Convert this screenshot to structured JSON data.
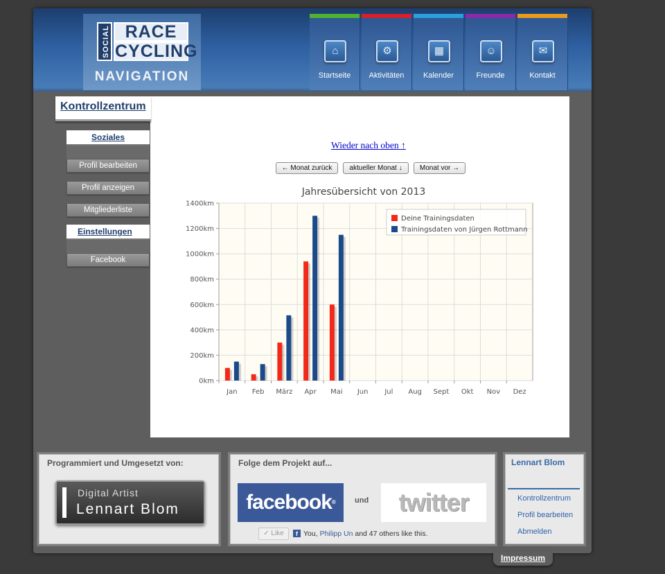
{
  "header": {
    "logo_social": "SOCIAL",
    "logo_race": "RACE",
    "logo_cycling": "CYCLING",
    "navigation_label": "NAVIGATION",
    "tabs": [
      {
        "label": "Startseite",
        "color": "#4fb330",
        "icon": "home-icon"
      },
      {
        "label": "Aktivitäten",
        "color": "#d8202a",
        "icon": "bicycle-icon"
      },
      {
        "label": "Kalender",
        "color": "#2aa0dc",
        "icon": "calendar-icon"
      },
      {
        "label": "Freunde",
        "color": "#8b2aa8",
        "icon": "friends-icon"
      },
      {
        "label": "Kontakt",
        "color": "#e89a1c",
        "icon": "mail-icon"
      }
    ]
  },
  "page_title": "Kontrollzentrum",
  "sidebar": {
    "soziales": "Soziales",
    "items_social": [
      "Profil bearbeiten",
      "Profil anzeigen",
      "Mitgliederliste"
    ],
    "einstellungen": "Einstellungen",
    "items_settings": [
      "Facebook"
    ]
  },
  "content": {
    "top_link": "Wieder nach oben ↑",
    "btn_prev": "← Monat zurück",
    "btn_current": "aktueller Monat ↓",
    "btn_next": "Monat vor →"
  },
  "chart_data": {
    "type": "bar",
    "title": "Jahresübersicht von 2013",
    "categories": [
      "Jan",
      "Feb",
      "März",
      "Apr",
      "Mai",
      "Jun",
      "Jul",
      "Aug",
      "Sept",
      "Okt",
      "Nov",
      "Dez"
    ],
    "series": [
      {
        "name": "Deine Trainingsdaten",
        "color": "#f2281b",
        "values": [
          100,
          50,
          300,
          940,
          600,
          0,
          0,
          0,
          0,
          0,
          0,
          0
        ]
      },
      {
        "name": "Trainingsdaten von Jürgen Rottmann",
        "color": "#1b4a8a",
        "values": [
          150,
          130,
          515,
          1300,
          1150,
          0,
          0,
          0,
          0,
          0,
          0,
          0
        ]
      }
    ],
    "ylim": [
      0,
      1400
    ],
    "yticks": [
      "0km",
      "200km",
      "400km",
      "600km",
      "800km",
      "1000km",
      "1200km",
      "1400km"
    ],
    "grid": true,
    "legend": "top-right"
  },
  "footer": {
    "programmed_title": "Programmiert und Umgesetzt von:",
    "da_line1": "Digital Artist",
    "da_line2": "Lennart Blom",
    "follow_title": "Folge dem Projekt auf...",
    "facebook": "facebook",
    "und": "und",
    "twitter": "twitter",
    "like_btn": "✓ Like",
    "like_text_pre": "You, ",
    "like_name": "Philipp Un",
    "like_text_post": " and 47 others like this.",
    "user_name": "Lennart Blom",
    "user_links": [
      "Kontrollzentrum",
      "Profil bearbeiten",
      "Abmelden"
    ],
    "impressum": "Impressum"
  }
}
